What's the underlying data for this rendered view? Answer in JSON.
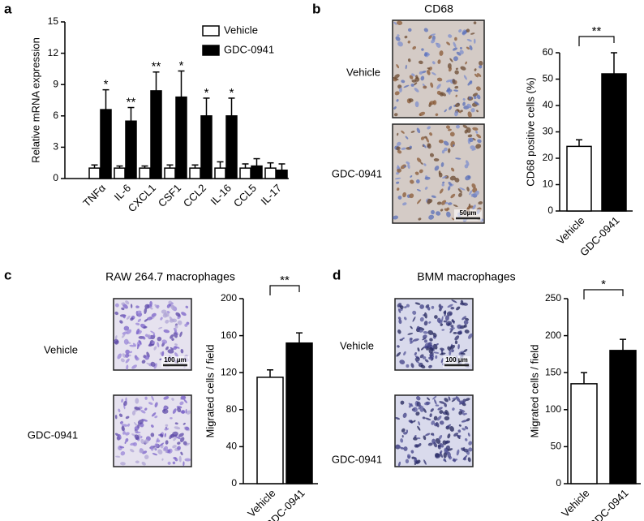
{
  "chart_data": [
    {
      "panel": "a",
      "type": "bar",
      "y_label": "Relative mRNA expression",
      "categories": [
        "TNFα",
        "IL-6",
        "CXCL1",
        "CSF1",
        "CCL2",
        "IL-16",
        "CCL5",
        "IL-17"
      ],
      "series": [
        {
          "name": "Vehicle",
          "color": "#ffffff",
          "values": [
            1,
            1,
            1,
            1,
            1,
            1,
            1,
            1
          ],
          "errors": [
            0.3,
            0.2,
            0.2,
            0.3,
            0.3,
            0.6,
            0.4,
            0.5
          ]
        },
        {
          "name": "GDC-0941",
          "color": "#000000",
          "values": [
            6.6,
            5.5,
            8.4,
            7.8,
            6.0,
            6.0,
            1.2,
            0.8
          ],
          "errors": [
            1.9,
            1.3,
            1.8,
            2.5,
            1.7,
            1.7,
            0.7,
            0.6
          ]
        }
      ],
      "significance": [
        "*",
        "**",
        "**",
        "*",
        "*",
        "*",
        null,
        null
      ],
      "ylim": [
        0,
        15
      ],
      "yticks": [
        0,
        3,
        6,
        9,
        12,
        15
      ]
    },
    {
      "panel": "b",
      "type": "bar",
      "title": "CD68",
      "images": [
        {
          "label": "Vehicle"
        },
        {
          "label": "GDC-0941",
          "scale_bar": "50μm"
        }
      ],
      "y_label": "CD68 positive cells (%)",
      "categories": [
        "Vehicle",
        "GDC-0941"
      ],
      "values": [
        24.5,
        52
      ],
      "errors": [
        2.5,
        8
      ],
      "colors": [
        "#ffffff",
        "#000000"
      ],
      "significance": "**",
      "ylim": [
        0,
        60
      ],
      "yticks": [
        0,
        10,
        20,
        30,
        40,
        50,
        60
      ]
    },
    {
      "panel": "c",
      "type": "bar",
      "title": "RAW 264.7 macrophages",
      "images": [
        {
          "label": "Vehicle",
          "scale_bar": "100 μm"
        },
        {
          "label": "GDC-0941"
        }
      ],
      "y_label": "Migrated cells / field",
      "categories": [
        "Vehicle",
        "GDC-0941"
      ],
      "values": [
        115,
        152
      ],
      "errors": [
        8,
        11
      ],
      "colors": [
        "#ffffff",
        "#000000"
      ],
      "significance": "**",
      "ylim": [
        0,
        200
      ],
      "yticks": [
        0,
        40,
        80,
        120,
        160,
        200
      ]
    },
    {
      "panel": "d",
      "type": "bar",
      "title": "BMM macrophages",
      "images": [
        {
          "label": "Vehicle",
          "scale_bar": "100 μm"
        },
        {
          "label": "GDC-0941"
        }
      ],
      "y_label": "Migrated cells / field",
      "categories": [
        "Vehicle",
        "GDC-0941"
      ],
      "values": [
        135,
        180
      ],
      "errors": [
        15,
        15
      ],
      "colors": [
        "#ffffff",
        "#000000"
      ],
      "significance": "*",
      "ylim": [
        0,
        250
      ],
      "yticks": [
        0,
        50,
        100,
        150,
        200,
        250
      ]
    }
  ]
}
